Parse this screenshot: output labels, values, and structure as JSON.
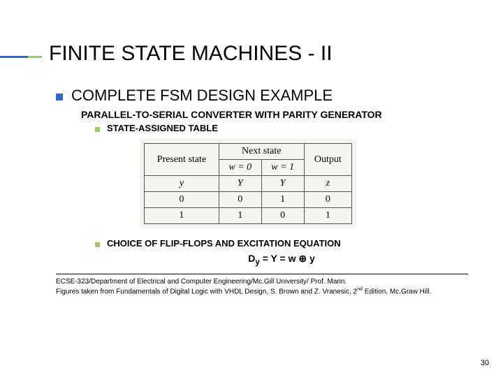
{
  "title": "FINITE STATE MACHINES - II",
  "subtitle": "COMPLETE FSM DESIGN EXAMPLE",
  "line2": "PARALLEL-TO-SERIAL CONVERTER WITH PARITY GENERATOR",
  "bullet_a": "STATE-ASSIGNED  TABLE",
  "bullet_b": "CHOICE OF FLIP-FLOPS AND EXCITATION EQUATION",
  "equation_lhs": "D",
  "equation_sub": "y",
  "equation_rhs": " = Y = w ⊕ y",
  "table": {
    "h_present": "Present state",
    "h_next": "Next state",
    "h_output": "Output",
    "h_w0": "w = 0",
    "h_w1": "w = 1",
    "sym_y": "y",
    "sym_YA": "Y",
    "sym_YB": "Y",
    "sym_z": "z",
    "rows": [
      {
        "y": "0",
        "Y0": "0",
        "Y1": "1",
        "z": "0"
      },
      {
        "y": "1",
        "Y0": "1",
        "Y1": "0",
        "z": "1"
      }
    ]
  },
  "footer1": "ECSE-323/Department of Electrical and Computer Engineering/Mc.Gill University/ Prof. Marin.",
  "footer2a": "Figures taken from Fundamentals of Digital Logic with VHDL Design, S. Brown and Z. Vranesic, 2",
  "footer2b": "nd",
  "footer2c": " Edition, Mc.Graw Hill.",
  "page": "30"
}
